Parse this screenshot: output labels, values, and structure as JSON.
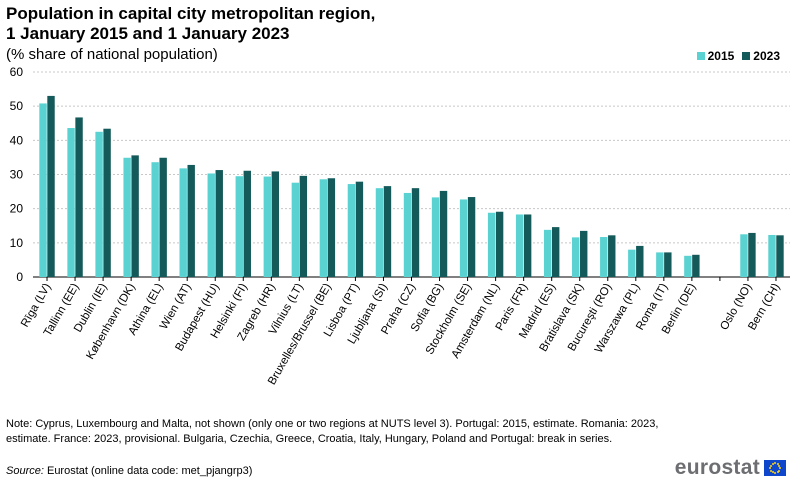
{
  "title_line1": "Population in capital city metropolitan region,",
  "title_line2": "1 January 2015 and 1 January 2023",
  "subtitle": "(% share of national population)",
  "legend": {
    "s1": "2015",
    "s2": "2023"
  },
  "colors": {
    "s1": "#5bd2d2",
    "s2": "#145a5a",
    "grid": "#c8c8c8",
    "axis": "#000000"
  },
  "chart_data": {
    "type": "bar",
    "title": "Population in capital city metropolitan region, 1 January 2015 and 1 January 2023",
    "ylabel": "% share of national population",
    "ylim": [
      0,
      60
    ],
    "yticks": [
      0,
      10,
      20,
      30,
      40,
      50,
      60
    ],
    "grid": true,
    "legend_position": "top-right",
    "categories": [
      "Rīga (LV)",
      "Tallinn (EE)",
      "Dublin (IE)",
      "København (DK)",
      "Athina (EL)",
      "Wien (AT)",
      "Budapest (HU)",
      "Helsinki (FI)",
      "Zagreb (HR)",
      "Vilnius (LT)",
      "Bruxelles/Brussel (BE)",
      "Lisboa (PT)",
      "Ljubljana (SI)",
      "Praha (CZ)",
      "Sofia (BG)",
      "Stockholm (SE)",
      "Amsterdam (NL)",
      "Paris (FR)",
      "Madrid (ES)",
      "Bratislava (SK)",
      "Bucureşti (RO)",
      "Warszawa (PL)",
      "Roma (IT)",
      "Berlin (DE)",
      "",
      "Oslo (NO)",
      "Bern (CH)"
    ],
    "series": [
      {
        "name": "2015",
        "values": [
          50.8,
          43.6,
          42.5,
          34.9,
          33.6,
          31.8,
          30.3,
          29.5,
          29.4,
          27.6,
          28.6,
          27.2,
          26.0,
          24.6,
          23.3,
          22.7,
          18.8,
          18.3,
          13.8,
          11.6,
          11.7,
          8.0,
          7.2,
          6.2,
          null,
          12.5,
          12.3
        ]
      },
      {
        "name": "2023",
        "values": [
          53.0,
          46.7,
          43.4,
          35.6,
          34.9,
          32.8,
          31.3,
          31.1,
          30.9,
          29.6,
          28.9,
          27.9,
          26.6,
          26.0,
          25.2,
          23.4,
          19.1,
          18.3,
          14.6,
          13.5,
          12.2,
          9.1,
          7.2,
          6.5,
          null,
          12.9,
          12.2
        ]
      }
    ]
  },
  "note": "Note: Cyprus, Luxembourg and Malta, not shown (only one or two regions at NUTS level 3). Portugal: 2015, estimate. Romania: 2023, estimate. France: 2023, provisional. Bulgaria, Czechia, Greece, Croatia, Italy, Hungary, Poland and Portugal: break in series.",
  "source_label": "Source:",
  "source_text": " Eurostat (online data code: met_pjangrp3)",
  "brand": "eurostat",
  "brand_icon": "eu-flag-icon"
}
